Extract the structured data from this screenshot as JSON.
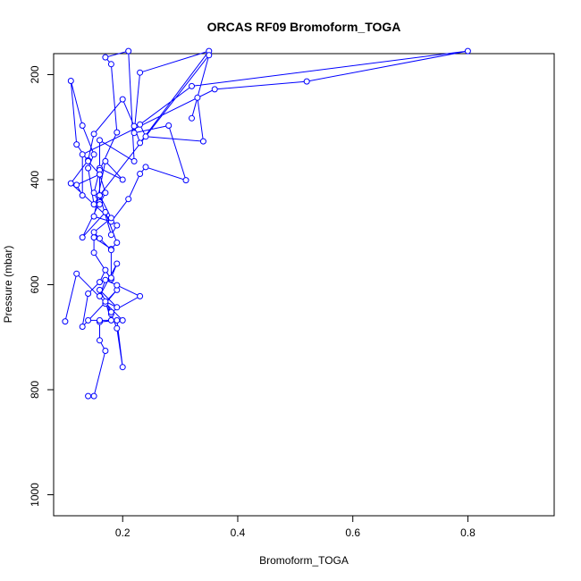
{
  "chart_data": {
    "type": "line",
    "title": "ORCAS RF09 Bromoform_TOGA",
    "xlabel": "Bromoform_TOGA",
    "ylabel": "Pressure (mbar)",
    "xlim": [
      0.08,
      0.95
    ],
    "ylim": [
      1040,
      160
    ],
    "y_reversed": true,
    "x_ticks": [
      0.2,
      0.4,
      0.6,
      0.8
    ],
    "x_tick_labels": [
      "0.2",
      "0.4",
      "0.6",
      "0.8"
    ],
    "y_ticks": [
      200,
      400,
      600,
      800,
      1000
    ],
    "y_tick_labels": [
      "200",
      "400",
      "600",
      "800",
      "1000"
    ],
    "grid": false,
    "legend": "none",
    "series_color": "#0000ff",
    "marker": "open-circle",
    "series": [
      {
        "x": [
          0.14,
          0.15,
          0.17,
          0.16,
          0.16,
          0.19,
          0.2,
          0.19,
          0.18,
          0.17,
          0.19,
          0.13,
          0.14,
          0.16,
          0.17,
          0.18,
          0.15,
          0.15,
          0.18,
          0.19,
          0.17,
          0.13,
          0.16,
          0.16,
          0.2,
          0.17,
          0.15,
          0.18,
          0.21,
          0.23,
          0.24,
          0.31,
          0.28,
          0.22,
          0.23,
          0.35,
          0.23,
          0.22,
          0.2,
          0.15,
          0.14,
          0.11,
          0.19,
          0.18,
          0.16,
          0.15,
          0.14,
          0.15,
          0.13,
          0.11,
          0.12,
          0.14,
          0.16,
          0.17,
          0.16,
          0.15,
          0.16,
          0.19,
          0.18,
          0.17,
          0.21,
          0.22,
          0.16,
          0.16,
          0.12,
          0.13,
          0.13,
          0.36,
          0.52,
          0.8,
          0.32,
          0.23,
          0.24,
          0.34,
          0.33,
          0.32,
          0.35,
          0.16,
          0.18,
          0.15,
          0.16,
          0.18,
          0.18,
          0.19,
          0.16,
          0.17,
          0.19,
          0.23,
          0.18,
          0.16,
          0.19,
          0.17,
          0.18,
          0.14,
          0.16,
          0.2,
          0.12,
          0.1
        ],
        "y": [
          812,
          812,
          726,
          706,
          671,
          668,
          757,
          683,
          656,
          636,
          610,
          680,
          617,
          595,
          572,
          590,
          539,
          510,
          532,
          520,
          462,
          510,
          443,
          378,
          400,
          365,
          470,
          480,
          437,
          389,
          376,
          401,
          297,
          311,
          196,
          155,
          330,
          298,
          247,
          313,
          363,
          407,
          487,
          505,
          430,
          447,
          378,
          352,
          297,
          212,
          333,
          365,
          390,
          425,
          447,
          425,
          382,
          310,
          180,
          167,
          155,
          365,
          325,
          390,
          410,
          430,
          352,
          228,
          213,
          155,
          222,
          295,
          318,
          327,
          244,
          283,
          163,
          430,
          473,
          500,
          512,
          534,
          587,
          560,
          622,
          591,
          601,
          622,
          652,
          610,
          643,
          632,
          668,
          668,
          668,
          668,
          579,
          670
        ]
      }
    ]
  }
}
